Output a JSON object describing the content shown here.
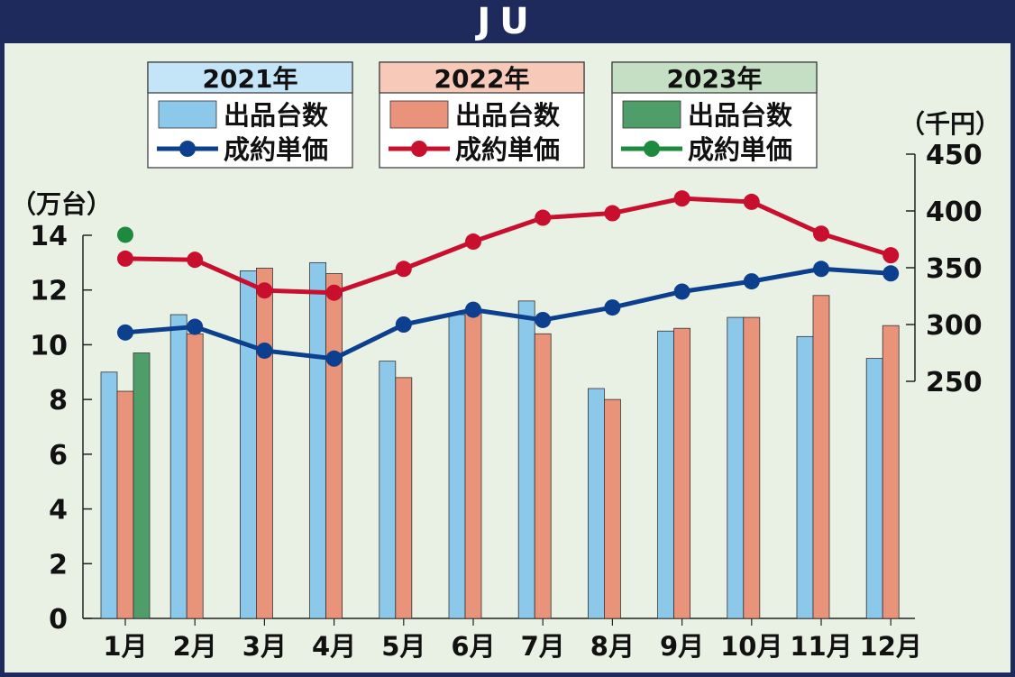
{
  "title": "JU",
  "colors": {
    "frame": "#1f2a5c",
    "background": "#e9f1e5",
    "bar_2021": "#8cc8ea",
    "bar_2022": "#e8937a",
    "bar_2023": "#4f9e69",
    "line_2021": "#0c3f8e",
    "line_2022": "#c8102e",
    "line_2023": "#1e8a3e",
    "legend_header_2021": "#c3e5f7",
    "legend_header_2022": "#f6c9b8",
    "legend_header_2023": "#c4dfc3"
  },
  "chart_data": {
    "type": "bar",
    "categories": [
      "1月",
      "2月",
      "3月",
      "4月",
      "5月",
      "6月",
      "7月",
      "8月",
      "9月",
      "10月",
      "11月",
      "12月"
    ],
    "left_axis": {
      "label": "（万台）",
      "ylim": [
        0,
        14
      ],
      "ticks": [
        "0",
        "2",
        "4",
        "6",
        "8",
        "10",
        "12",
        "14"
      ]
    },
    "right_axis": {
      "label": "（千円）",
      "ylim": [
        250,
        450
      ],
      "ticks": [
        "250",
        "300",
        "350",
        "400",
        "450"
      ]
    },
    "legend": [
      {
        "year": "2021年",
        "bar_label": "出品台数",
        "line_label": "成約単価"
      },
      {
        "year": "2022年",
        "bar_label": "出品台数",
        "line_label": "成約単価"
      },
      {
        "year": "2023年",
        "bar_label": "出品台数",
        "line_label": "成約単価"
      }
    ],
    "bar_series": [
      {
        "name": "2021年 出品台数",
        "axis": "left",
        "values": [
          9.0,
          11.1,
          12.7,
          13.0,
          9.4,
          11.1,
          11.6,
          8.4,
          10.5,
          11.0,
          10.3,
          9.5
        ]
      },
      {
        "name": "2022年 出品台数",
        "axis": "left",
        "values": [
          8.3,
          10.4,
          12.8,
          12.6,
          8.8,
          11.3,
          10.4,
          8.0,
          10.6,
          11.0,
          11.8,
          10.7
        ]
      },
      {
        "name": "2023年 出品台数",
        "axis": "left",
        "values": [
          9.7
        ]
      }
    ],
    "line_series": [
      {
        "name": "2021年 成約単価",
        "axis": "right",
        "values": [
          293,
          298,
          277,
          270,
          300,
          313,
          304,
          315,
          329,
          338,
          349,
          345
        ]
      },
      {
        "name": "2022年 成約単価",
        "axis": "right",
        "values": [
          358,
          357,
          330,
          328,
          349,
          373,
          394,
          398,
          411,
          408,
          380,
          361
        ]
      },
      {
        "name": "2023年 成約単価",
        "axis": "right",
        "values": [
          379
        ]
      }
    ]
  }
}
